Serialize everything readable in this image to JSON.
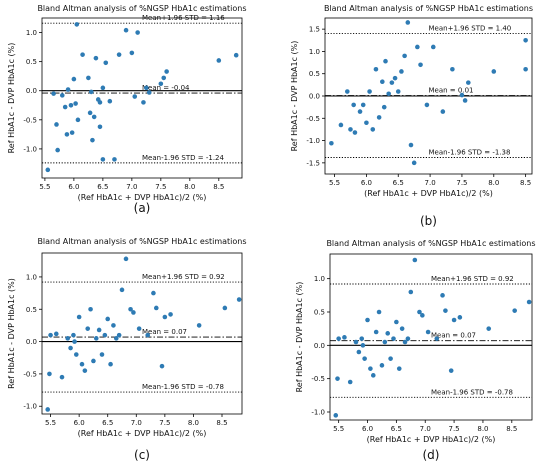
{
  "chart_data": [
    {
      "type": "scatter",
      "panel_label": "(a)",
      "title": "Bland Altman analysis of %NGSP HbA1c estimations",
      "xlabel": "(Ref HbA1c + DVP HbA1c)/2 (%)",
      "ylabel": "Ref HbA1c - DVP HbA1c (%)",
      "xlim": [
        5.45,
        8.9
      ],
      "ylim": [
        -1.5,
        1.25
      ],
      "xticks": [
        "5.5",
        "6.0",
        "6.5",
        "7.0",
        "7.5",
        "8.0",
        "8.5"
      ],
      "xtick_values": [
        5.5,
        6.0,
        6.5,
        7.0,
        7.5,
        8.0,
        8.5
      ],
      "yticks": [
        "-1.0",
        "-0.5",
        "0.0",
        "0.5",
        "1.0"
      ],
      "ytick_values": [
        -1.0,
        -0.5,
        0.0,
        0.5,
        1.0
      ],
      "mean": -0.04,
      "upper": 1.16,
      "lower": -1.24,
      "mean_label": "Mean = -0.04",
      "upper_label": "Mean+1.96 STD = 1.16",
      "lower_label": "Mean-1.96 STD = -1.24",
      "points": [
        [
          5.55,
          -1.36
        ],
        [
          5.65,
          -0.05
        ],
        [
          5.7,
          -0.58
        ],
        [
          5.72,
          -1.02
        ],
        [
          5.8,
          -0.08
        ],
        [
          5.85,
          -0.28
        ],
        [
          5.88,
          -0.75
        ],
        [
          5.9,
          0.02
        ],
        [
          5.95,
          -0.25
        ],
        [
          5.97,
          -0.72
        ],
        [
          6.0,
          0.2
        ],
        [
          6.03,
          -0.22
        ],
        [
          6.05,
          1.14
        ],
        [
          6.07,
          -0.5
        ],
        [
          6.15,
          0.62
        ],
        [
          6.25,
          0.22
        ],
        [
          6.28,
          -0.38
        ],
        [
          6.3,
          -0.02
        ],
        [
          6.32,
          -0.85
        ],
        [
          6.35,
          -0.45
        ],
        [
          6.38,
          0.56
        ],
        [
          6.42,
          -0.15
        ],
        [
          6.45,
          -0.2
        ],
        [
          6.45,
          -0.62
        ],
        [
          6.5,
          0.05
        ],
        [
          6.5,
          -1.18
        ],
        [
          6.55,
          0.48
        ],
        [
          6.62,
          -0.18
        ],
        [
          6.7,
          -1.18
        ],
        [
          6.78,
          0.62
        ],
        [
          6.9,
          1.04
        ],
        [
          7.0,
          0.65
        ],
        [
          7.05,
          -0.1
        ],
        [
          7.1,
          1.0
        ],
        [
          7.2,
          -0.2
        ],
        [
          7.3,
          -0.03
        ],
        [
          7.5,
          0.12
        ],
        [
          7.55,
          0.22
        ],
        [
          7.6,
          0.33
        ],
        [
          8.5,
          0.52
        ],
        [
          8.8,
          0.61
        ],
        [
          7.25,
          0.05
        ]
      ]
    },
    {
      "type": "scatter",
      "panel_label": "(b)",
      "title": "Bland Altman analysis of %NGSP HbA1c estimations",
      "xlabel": "(Ref HbA1c + DVP HbA1c)/2 (%)",
      "ylabel": "Ref HbA1c - DVP HbA1c (%)",
      "xlim": [
        5.35,
        8.6
      ],
      "ylim": [
        -1.75,
        1.75
      ],
      "xticks": [
        "5.5",
        "6.0",
        "6.5",
        "7.0",
        "7.5",
        "8.0",
        "8.5"
      ],
      "xtick_values": [
        5.5,
        6.0,
        6.5,
        7.0,
        7.5,
        8.0,
        8.5
      ],
      "yticks": [
        "-1.5",
        "-1.0",
        "-0.5",
        "0.0",
        "0.5",
        "1.0",
        "1.5"
      ],
      "ytick_values": [
        -1.5,
        -1.0,
        -0.5,
        0.0,
        0.5,
        1.0,
        1.5
      ],
      "mean": 0.01,
      "upper": 1.4,
      "lower": -1.38,
      "mean_label": "Mean = 0.01",
      "upper_label": "Mean+1.96 STD = 1.40",
      "lower_label": "Mean-1.96 STD = -1.38",
      "points": [
        [
          5.45,
          -1.06
        ],
        [
          5.6,
          -0.65
        ],
        [
          5.7,
          0.1
        ],
        [
          5.75,
          -0.75
        ],
        [
          5.8,
          -0.2
        ],
        [
          5.82,
          -0.82
        ],
        [
          5.9,
          -0.35
        ],
        [
          5.95,
          -0.2
        ],
        [
          6.0,
          -0.6
        ],
        [
          6.05,
          0.1
        ],
        [
          6.1,
          -0.75
        ],
        [
          6.15,
          0.6
        ],
        [
          6.2,
          -0.48
        ],
        [
          6.25,
          0.32
        ],
        [
          6.28,
          -0.25
        ],
        [
          6.3,
          0.78
        ],
        [
          6.35,
          0.05
        ],
        [
          6.4,
          0.3
        ],
        [
          6.45,
          0.4
        ],
        [
          6.5,
          0.1
        ],
        [
          6.55,
          0.55
        ],
        [
          6.6,
          0.9
        ],
        [
          6.65,
          1.65
        ],
        [
          6.7,
          -1.1
        ],
        [
          6.75,
          -1.5
        ],
        [
          6.8,
          1.1
        ],
        [
          6.85,
          0.7
        ],
        [
          6.95,
          -0.2
        ],
        [
          7.05,
          1.1
        ],
        [
          7.2,
          -0.35
        ],
        [
          7.35,
          0.6
        ],
        [
          7.5,
          0.02
        ],
        [
          7.55,
          -0.1
        ],
        [
          7.6,
          0.3
        ],
        [
          8.0,
          0.55
        ],
        [
          8.5,
          1.25
        ],
        [
          8.5,
          0.6
        ]
      ]
    },
    {
      "type": "scatter",
      "panel_label": "(c)",
      "title": "Bland Altman analysis of %NGSP HbA1c estimations",
      "xlabel": "(Ref HbA1c + DVP HbA1c)/2 (%)",
      "ylabel": "Ref HbA1c - DVP HbA1c (%)",
      "xlim": [
        5.35,
        8.85
      ],
      "ylim": [
        -1.12,
        1.37
      ],
      "xticks": [
        "5.5",
        "6.0",
        "6.5",
        "7.0",
        "7.5",
        "8.0",
        "8.5"
      ],
      "xtick_values": [
        5.5,
        6.0,
        6.5,
        7.0,
        7.5,
        8.0,
        8.5
      ],
      "yticks": [
        "-1.0",
        "-0.5",
        "0.0",
        "0.5",
        "1.0"
      ],
      "ytick_values": [
        -1.0,
        -0.5,
        0.0,
        0.5,
        1.0
      ],
      "mean": 0.07,
      "upper": 0.92,
      "lower": -0.78,
      "mean_label": "Mean = 0.07",
      "upper_label": "Mean+1.96 STD = 0.92",
      "lower_label": "Mean-1.96 STD = -0.78",
      "points": [
        [
          5.45,
          -1.05
        ],
        [
          5.48,
          -0.5
        ],
        [
          5.5,
          0.1
        ],
        [
          5.6,
          0.12
        ],
        [
          5.7,
          -0.55
        ],
        [
          5.8,
          0.05
        ],
        [
          5.85,
          -0.1
        ],
        [
          5.9,
          0.1
        ],
        [
          5.92,
          0.0
        ],
        [
          5.95,
          -0.2
        ],
        [
          6.0,
          0.38
        ],
        [
          6.05,
          -0.35
        ],
        [
          6.1,
          -0.45
        ],
        [
          6.15,
          0.2
        ],
        [
          6.2,
          0.5
        ],
        [
          6.25,
          -0.3
        ],
        [
          6.3,
          0.05
        ],
        [
          6.35,
          0.18
        ],
        [
          6.4,
          -0.2
        ],
        [
          6.45,
          0.1
        ],
        [
          6.5,
          0.35
        ],
        [
          6.55,
          -0.35
        ],
        [
          6.6,
          0.25
        ],
        [
          6.65,
          0.05
        ],
        [
          6.7,
          0.1
        ],
        [
          6.75,
          0.8
        ],
        [
          6.82,
          1.28
        ],
        [
          6.9,
          0.5
        ],
        [
          6.95,
          0.45
        ],
        [
          7.05,
          0.2
        ],
        [
          7.2,
          0.1
        ],
        [
          7.3,
          0.75
        ],
        [
          7.35,
          0.52
        ],
        [
          7.45,
          -0.38
        ],
        [
          7.5,
          0.38
        ],
        [
          7.6,
          0.42
        ],
        [
          8.1,
          0.25
        ],
        [
          8.55,
          0.52
        ],
        [
          8.8,
          0.65
        ]
      ]
    },
    {
      "type": "scatter",
      "panel_label": "(d)",
      "title": "Bland Altman analysis of %NGSP HbA1c estimations",
      "xlabel": "(Ref HbA1c + DVP HbA1c)/2 (%)",
      "ylabel": "Ref HbA1c - DVP HbA1c (%)",
      "xlim": [
        5.35,
        8.85
      ],
      "ylim": [
        -1.12,
        1.37
      ],
      "xticks": [
        "5.5",
        "6.0",
        "6.5",
        "7.0",
        "7.5",
        "8.0",
        "8.5"
      ],
      "xtick_values": [
        5.5,
        6.0,
        6.5,
        7.0,
        7.5,
        8.0,
        8.5
      ],
      "yticks": [
        "-1.0",
        "-0.5",
        "0.0",
        "0.5",
        "1.0"
      ],
      "ytick_values": [
        -1.0,
        -0.5,
        0.0,
        0.5,
        1.0
      ],
      "mean": 0.07,
      "upper": 0.92,
      "lower": -0.78,
      "mean_label": "Mean = 0.07",
      "upper_label": "Mean+1.96 STD = 0.92",
      "lower_label": "Mean-1.96 STD = -0.78",
      "points": [
        [
          5.45,
          -1.05
        ],
        [
          5.48,
          -0.5
        ],
        [
          5.5,
          0.1
        ],
        [
          5.6,
          0.12
        ],
        [
          5.7,
          -0.55
        ],
        [
          5.8,
          0.05
        ],
        [
          5.85,
          -0.1
        ],
        [
          5.9,
          0.1
        ],
        [
          5.92,
          0.0
        ],
        [
          5.95,
          -0.2
        ],
        [
          6.0,
          0.38
        ],
        [
          6.05,
          -0.35
        ],
        [
          6.1,
          -0.45
        ],
        [
          6.15,
          0.2
        ],
        [
          6.2,
          0.5
        ],
        [
          6.25,
          -0.3
        ],
        [
          6.3,
          0.05
        ],
        [
          6.35,
          0.18
        ],
        [
          6.4,
          -0.2
        ],
        [
          6.45,
          0.1
        ],
        [
          6.5,
          0.35
        ],
        [
          6.55,
          -0.35
        ],
        [
          6.6,
          0.25
        ],
        [
          6.65,
          0.05
        ],
        [
          6.7,
          0.1
        ],
        [
          6.75,
          0.8
        ],
        [
          6.82,
          1.28
        ],
        [
          6.9,
          0.5
        ],
        [
          6.95,
          0.45
        ],
        [
          7.05,
          0.2
        ],
        [
          7.2,
          0.1
        ],
        [
          7.3,
          0.75
        ],
        [
          7.35,
          0.52
        ],
        [
          7.45,
          -0.38
        ],
        [
          7.5,
          0.38
        ],
        [
          7.6,
          0.42
        ],
        [
          8.1,
          0.25
        ],
        [
          8.55,
          0.52
        ],
        [
          8.8,
          0.65
        ]
      ]
    }
  ],
  "colors": {
    "point": "#2e7bb4",
    "line": "#000000",
    "axis": "#000000"
  }
}
